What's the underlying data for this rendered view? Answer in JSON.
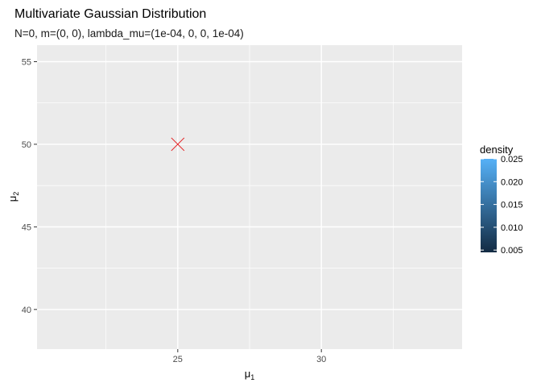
{
  "chart_data": {
    "type": "scatter",
    "title": "Multivariate Gaussian Distribution",
    "subtitle": "N=0, m=(0, 0), lambda_mu=(1e-04, 0, 0, 1e-04)",
    "xlabel": "μ",
    "xlabel_sub": "1",
    "ylabel": "μ",
    "ylabel_sub": "2",
    "xlim": [
      20.1,
      34.9
    ],
    "ylim": [
      37.6,
      56.0
    ],
    "x_ticks": [
      25,
      30
    ],
    "x_tick_labels": [
      "25",
      "30"
    ],
    "y_ticks": [
      40,
      45,
      50,
      55
    ],
    "y_tick_labels": [
      "40",
      "45",
      "50",
      "55"
    ],
    "x_minor_ticks": [
      22.5,
      27.5,
      32.5
    ],
    "y_minor_ticks": [
      42.5,
      47.5,
      52.5
    ],
    "grid": true,
    "points": [
      {
        "x": 25,
        "y": 50,
        "marker": "x",
        "color": "#e41a1c"
      }
    ],
    "legend": {
      "title": "density",
      "position": "right",
      "type": "colorbar",
      "range": [
        0.0045,
        0.025
      ],
      "ticks": [
        0.005,
        0.01,
        0.015,
        0.02,
        0.025
      ],
      "tick_labels": [
        "0.005",
        "0.010",
        "0.015",
        "0.020",
        "0.025"
      ],
      "low_color": "#132b43",
      "high_color": "#56b1f7"
    },
    "panel_background": "#ebebeb",
    "grid_color": "#ffffff"
  }
}
